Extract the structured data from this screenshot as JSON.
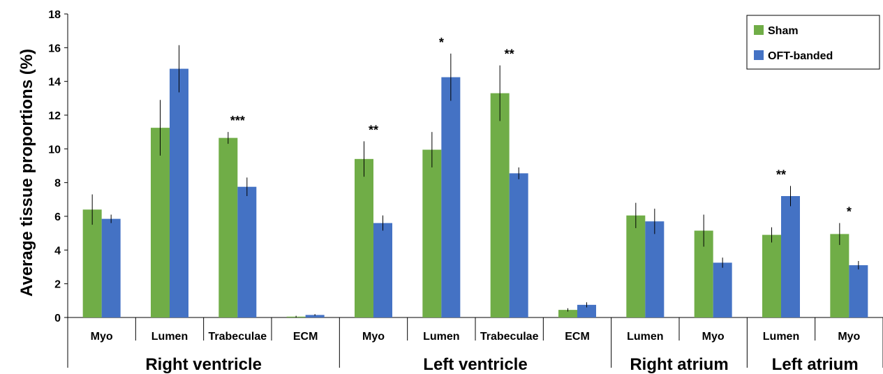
{
  "chart_data": {
    "type": "bar",
    "ylabel": "Average tissue proportions (%)",
    "ylim": [
      0,
      18
    ],
    "yticks": [
      0,
      2,
      4,
      6,
      8,
      10,
      12,
      14,
      16,
      18
    ],
    "grid": false,
    "legend_position": "top-right",
    "categories": [
      "Myo",
      "Lumen",
      "Trabeculae",
      "ECM",
      "Myo",
      "Lumen",
      "Trabeculae",
      "ECM",
      "Lumen",
      "Myo",
      "Lumen",
      "Myo"
    ],
    "groups": [
      {
        "name": "Right ventricle",
        "span": [
          0,
          3
        ]
      },
      {
        "name": "Left ventricle",
        "span": [
          4,
          7
        ]
      },
      {
        "name": "Right atrium",
        "span": [
          8,
          9
        ]
      },
      {
        "name": "Left atrium",
        "span": [
          10,
          11
        ]
      }
    ],
    "series": [
      {
        "name": "Sham",
        "color": "#70ad47",
        "values": [
          6.4,
          11.25,
          10.65,
          0.05,
          9.4,
          9.95,
          13.3,
          0.45,
          6.05,
          5.15,
          4.9,
          4.95
        ],
        "errors": [
          0.9,
          1.65,
          0.35,
          0.05,
          1.05,
          1.05,
          1.65,
          0.1,
          0.75,
          0.95,
          0.45,
          0.65
        ]
      },
      {
        "name": "OFT-banded",
        "color": "#4472c4",
        "values": [
          5.85,
          14.75,
          7.75,
          0.15,
          5.6,
          14.25,
          8.55,
          0.75,
          5.7,
          3.25,
          7.2,
          3.1
        ],
        "errors": [
          0.25,
          1.4,
          0.55,
          0.05,
          0.45,
          1.4,
          0.35,
          0.15,
          0.75,
          0.3,
          0.6,
          0.25
        ]
      }
    ],
    "annotations": [
      {
        "category_index": 2,
        "text": "***",
        "value": 10.65,
        "error": 0.35
      },
      {
        "category_index": 4,
        "text": "**",
        "value": 9.4,
        "error": 1.05
      },
      {
        "category_index": 5,
        "text": "*",
        "value": 14.25,
        "error": 1.4
      },
      {
        "category_index": 6,
        "text": "**",
        "value": 13.3,
        "error": 1.65
      },
      {
        "category_index": 10,
        "text": "**",
        "value": 7.2,
        "error": 0.6
      },
      {
        "category_index": 11,
        "text": "*",
        "value": 4.95,
        "error": 0.65
      }
    ]
  }
}
